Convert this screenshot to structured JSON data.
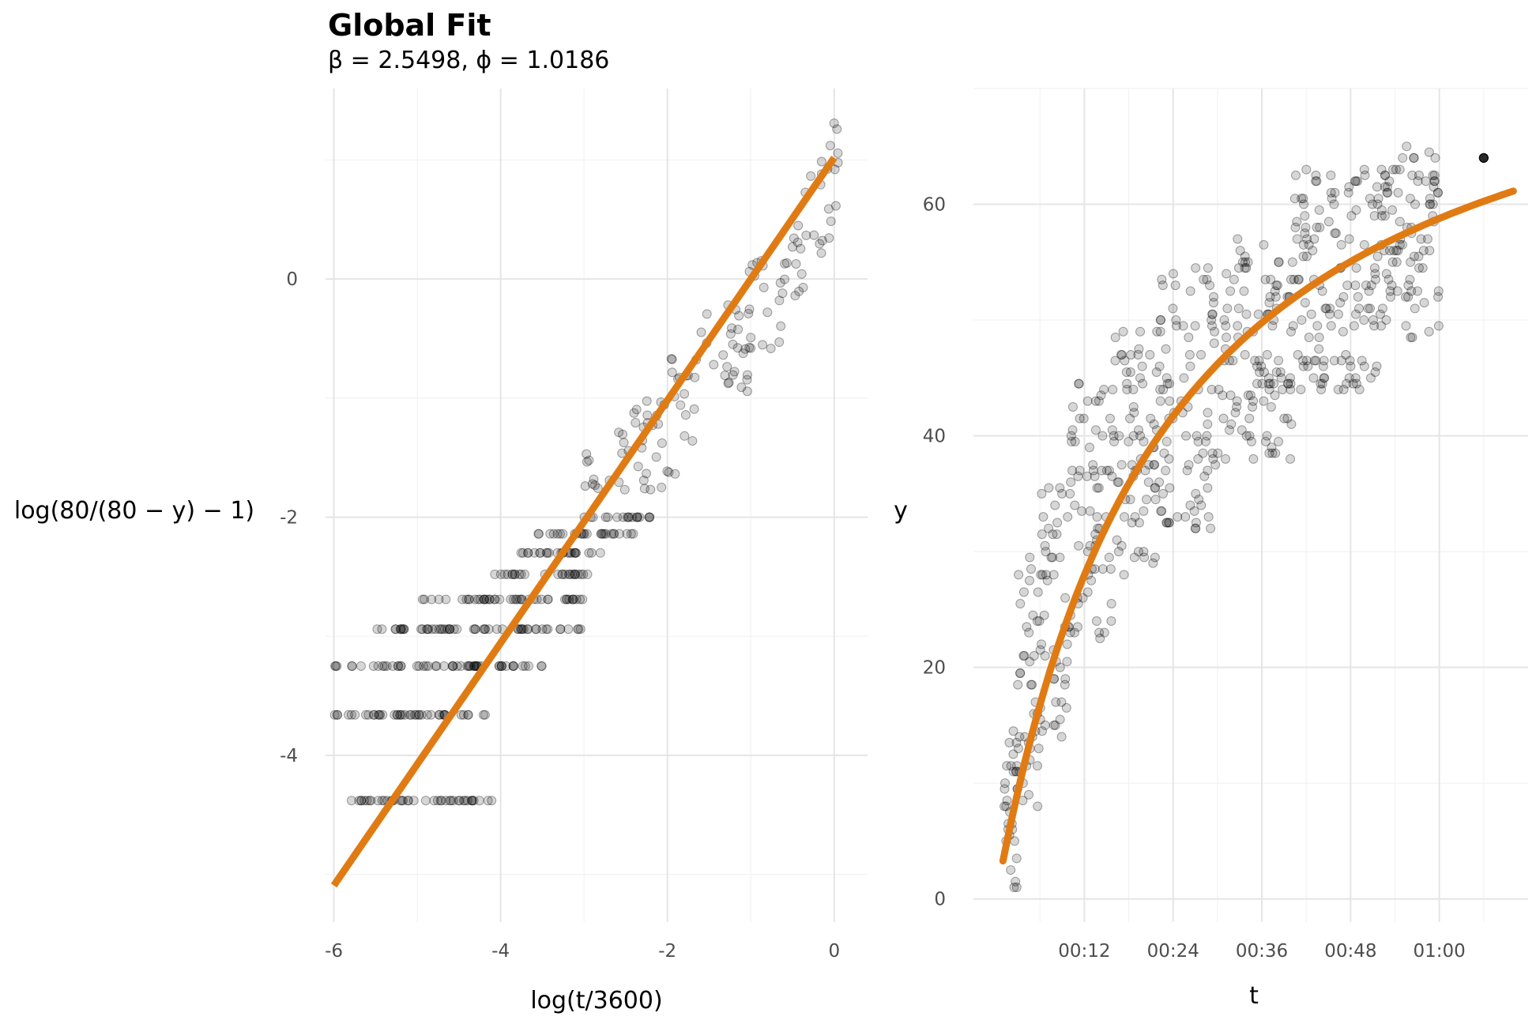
{
  "title": "Global Fit",
  "subtitle": "β = 2.5498,  ϕ = 1.0186",
  "colors": {
    "fit": "#e07b14",
    "points": "#000000",
    "grid": "#e5e5e5"
  },
  "chart_data": [
    {
      "type": "scatter",
      "xlabel": "log(t/3600)",
      "ylabel": "log(80/(80 − y) − 1)",
      "xlim": [
        -6.1,
        0.4
      ],
      "ylim": [
        -5.4,
        1.6
      ],
      "x_ticks": [
        -6,
        -4,
        -2,
        0
      ],
      "x_tick_labels": [
        "-6",
        "-4",
        "-2",
        "0"
      ],
      "y_ticks": [
        -4,
        -2,
        0
      ],
      "y_tick_labels": [
        "-4",
        "-2",
        "0"
      ],
      "grid": true,
      "fit_line": {
        "intercept": 1.0186,
        "slope": 1.0186,
        "x_range": [
          -6,
          0
        ]
      },
      "point_bands": [
        {
          "y": -4.38,
          "x": [
            -6.0,
            -4.1
          ]
        },
        {
          "y": -3.66,
          "x": [
            -6.0,
            -4.1
          ]
        },
        {
          "y": -3.25,
          "x": [
            -6.0,
            -3.5
          ]
        },
        {
          "y": -2.94,
          "x": [
            -5.5,
            -3.0
          ]
        },
        {
          "y": -2.69,
          "x": [
            -5.0,
            -3.0
          ]
        },
        {
          "y": -2.48,
          "x": [
            -4.1,
            -2.9
          ]
        },
        {
          "y": -2.3,
          "x": [
            -3.8,
            -2.7
          ]
        },
        {
          "y": -2.14,
          "x": [
            -3.6,
            -2.4
          ]
        },
        {
          "y": -2.0,
          "x": [
            -3.0,
            -2.2
          ]
        },
        {
          "y": -1.6,
          "x": [
            -3.0,
            -1.9
          ]
        },
        {
          "y": -1.2,
          "x": [
            -2.6,
            -1.6
          ]
        },
        {
          "y": -0.8,
          "x": [
            -2.1,
            -1.0
          ]
        },
        {
          "y": -0.4,
          "x": [
            -1.6,
            -0.6
          ]
        },
        {
          "y": 0.0,
          "x": [
            -1.1,
            -0.3
          ]
        },
        {
          "y": 0.4,
          "x": [
            -0.6,
            0.0
          ]
        },
        {
          "y": 0.8,
          "x": [
            -0.35,
            0.05
          ]
        },
        {
          "y": 1.2,
          "x": [
            -0.1,
            0.05
          ]
        }
      ]
    },
    {
      "type": "scatter",
      "xlabel": "t",
      "ylabel": "y",
      "x_unit": "minutes",
      "xlim": [
        -3,
        72
      ],
      "ylim": [
        -2,
        70
      ],
      "x_ticks": [
        12,
        24,
        36,
        48,
        60
      ],
      "x_tick_labels": [
        "00:12",
        "00:24",
        "00:36",
        "00:48",
        "01:00"
      ],
      "y_ticks": [
        0,
        20,
        40,
        60
      ],
      "y_tick_labels": [
        "0",
        "20",
        "40",
        "60"
      ],
      "grid": true,
      "fit_curve": {
        "asymptote": 80,
        "beta": 2.5498,
        "phi": 1.0186,
        "x_range": [
          1,
          70
        ]
      },
      "point_bands": [
        {
          "x": [
            1,
            3
          ],
          "y": [
            0,
            15
          ]
        },
        {
          "x": [
            3,
            6
          ],
          "y": [
            8,
            30
          ]
        },
        {
          "x": [
            6,
            10
          ],
          "y": [
            14,
            38
          ]
        },
        {
          "x": [
            10,
            16
          ],
          "y": [
            22,
            45
          ]
        },
        {
          "x": [
            16,
            22
          ],
          "y": [
            28,
            50
          ]
        },
        {
          "x": [
            22,
            30
          ],
          "y": [
            32,
            55
          ]
        },
        {
          "x": [
            30,
            40
          ],
          "y": [
            38,
            57
          ]
        },
        {
          "x": [
            40,
            52
          ],
          "y": [
            44,
            63
          ]
        },
        {
          "x": [
            52,
            60
          ],
          "y": [
            48,
            65
          ]
        },
        {
          "x": [
            66,
            66
          ],
          "y": [
            64,
            64
          ]
        }
      ]
    }
  ]
}
